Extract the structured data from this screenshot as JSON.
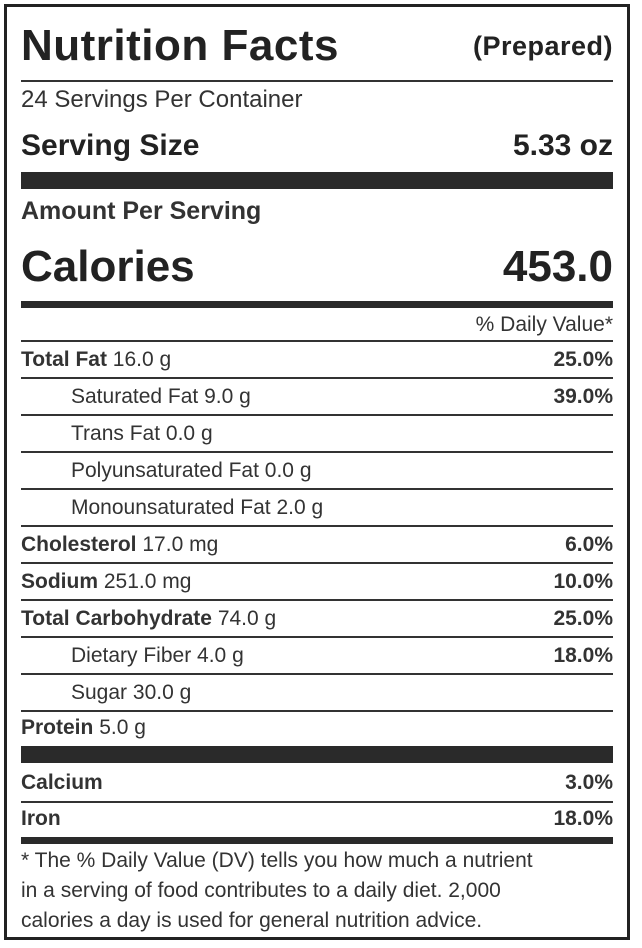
{
  "label": {
    "title": "Nutrition Facts",
    "subtitle": "(Prepared)",
    "servings_per_container": "24 Servings Per Container",
    "serving_size_label": "Serving Size",
    "serving_size_value": "5.33 oz",
    "amount_per_serving": "Amount Per Serving",
    "calories_label": "Calories",
    "calories_value": "453.0",
    "daily_value_header": "% Daily Value*"
  },
  "nutrients": {
    "total_fat": {
      "name": "Total Fat",
      "amount": "16.0 g",
      "dv": "25.0%"
    },
    "saturated_fat": {
      "name": "Saturated Fat",
      "amount": "9.0 g",
      "dv": "39.0%"
    },
    "trans_fat": {
      "name": "Trans Fat",
      "amount": "0.0 g",
      "dv": ""
    },
    "polyunsaturated_fat": {
      "name": "Polyunsaturated Fat",
      "amount": "0.0 g",
      "dv": ""
    },
    "monounsaturated_fat": {
      "name": "Monounsaturated Fat",
      "amount": "2.0 g",
      "dv": ""
    },
    "cholesterol": {
      "name": "Cholesterol",
      "amount": "17.0 mg",
      "dv": "6.0%"
    },
    "sodium": {
      "name": "Sodium",
      "amount": "251.0 mg",
      "dv": "10.0%"
    },
    "total_carbohydrate": {
      "name": "Total Carbohydrate",
      "amount": "74.0 g",
      "dv": "25.0%"
    },
    "dietary_fiber": {
      "name": "Dietary Fiber",
      "amount": "4.0 g",
      "dv": "18.0%"
    },
    "sugar": {
      "name": "Sugar",
      "amount": "30.0 g",
      "dv": ""
    },
    "protein": {
      "name": "Protein",
      "amount": "5.0 g",
      "dv": ""
    }
  },
  "minerals": {
    "calcium": {
      "name": "Calcium",
      "dv": "3.0%"
    },
    "iron": {
      "name": "Iron",
      "dv": "18.0%"
    }
  },
  "footnote": {
    "line1": "* The % Daily Value (DV) tells you how much a nutrient",
    "line2": "in a serving of food contributes to a daily diet. 2,000",
    "line3": "calories a day is used for general nutrition advice."
  }
}
